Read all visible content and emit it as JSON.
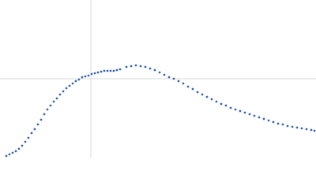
{
  "chart_data": {
    "type": "scatter",
    "color": "#3a67b5",
    "grid": true,
    "xlim": [
      0,
      400
    ],
    "ylim": [
      0,
      200
    ],
    "xticks": [
      115
    ],
    "yticks": [
      100
    ],
    "x": [
      8,
      12,
      16,
      20,
      24,
      28,
      32,
      36,
      40,
      44,
      48,
      52,
      56,
      60,
      64,
      68,
      72,
      76,
      80,
      84,
      88,
      92,
      96,
      100,
      104,
      108,
      112,
      116,
      120,
      124,
      128,
      132,
      136,
      140,
      144,
      148,
      152,
      160,
      166,
      172,
      178,
      184,
      190,
      196,
      202,
      208,
      214,
      220,
      226,
      232,
      238,
      244,
      250,
      256,
      262,
      268,
      274,
      280,
      286,
      292,
      298,
      304,
      310,
      316,
      322,
      328,
      334,
      340,
      346,
      352,
      358,
      364,
      370,
      376,
      382,
      388,
      394,
      398
    ],
    "values": [
      2,
      4,
      6,
      8,
      11,
      15,
      20,
      25,
      31,
      36,
      42,
      48,
      55,
      61,
      66,
      71,
      75,
      80,
      84,
      88,
      91,
      94,
      97,
      99,
      102,
      103,
      104,
      106,
      107,
      108,
      109,
      110,
      110,
      110,
      110,
      111,
      112,
      115,
      116,
      117,
      116,
      115,
      113,
      111,
      108,
      105,
      102,
      100,
      97,
      94,
      90,
      87,
      83,
      80,
      77,
      74,
      71,
      68,
      66,
      63,
      61,
      59,
      57,
      55,
      53,
      51,
      49,
      47,
      45,
      43,
      42,
      40,
      39,
      38,
      37,
      36,
      35,
      34
    ]
  }
}
